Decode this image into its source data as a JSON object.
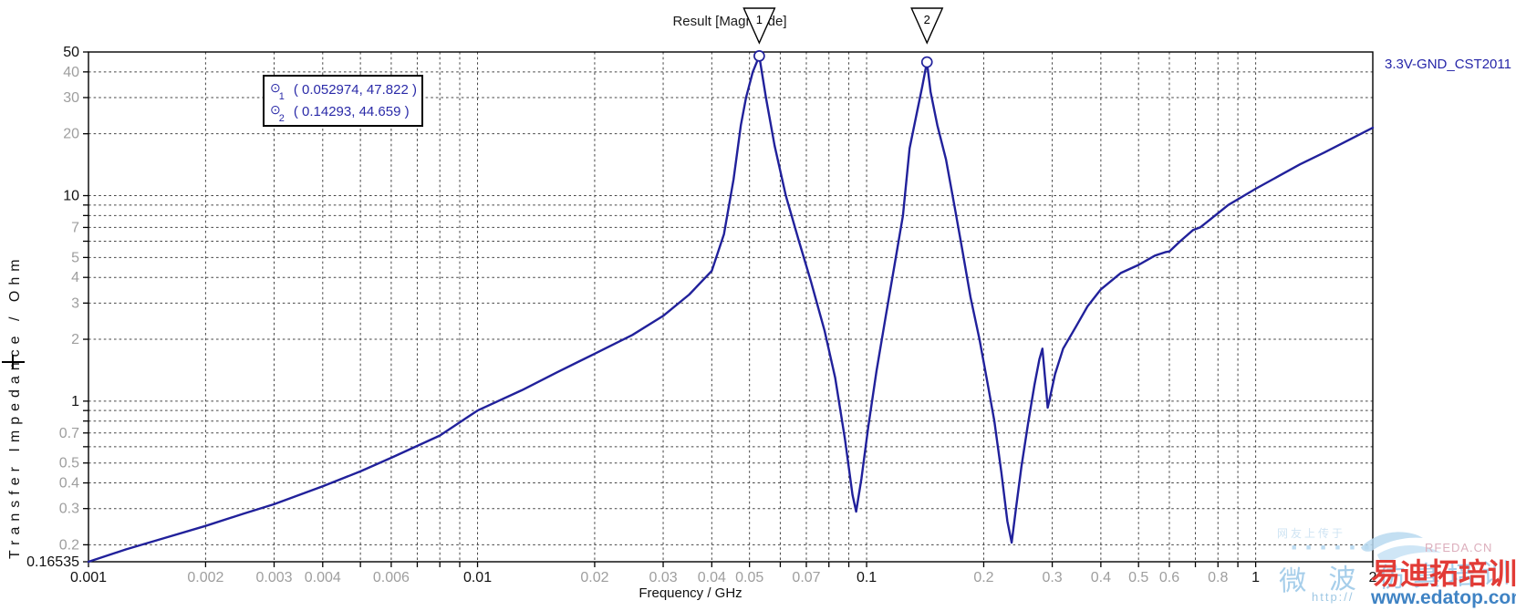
{
  "title": "Result [Magnitude]",
  "legend": {
    "label": "3.3V-GND_CST2011",
    "color": "#2525a8"
  },
  "axis_titles": {
    "x": "Frequency / GHz",
    "y": "Transfer Impedance / Ohm"
  },
  "markers": [
    {
      "id": "1",
      "x": 0.052974,
      "y": 47.822,
      "readout": "( 0.052974, 47.822 )"
    },
    {
      "id": "2",
      "x": 0.14293,
      "y": 44.659,
      "readout": "( 0.14293, 44.659 )"
    }
  ],
  "chart_data": {
    "type": "line",
    "title": "Result [Magnitude]",
    "xlabel": "Frequency / GHz",
    "ylabel": "Transfer Impedance / Ohm",
    "x_scale": "log",
    "y_scale": "log",
    "xlim": [
      0.001,
      2
    ],
    "ylim": [
      0.16535,
      50
    ],
    "grid": true,
    "legend_position": "top-right",
    "x_ticks": [
      {
        "v": 0.001,
        "label": "0.001",
        "major": true
      },
      {
        "v": 0.002,
        "label": "0.002",
        "major": false
      },
      {
        "v": 0.003,
        "label": "0.003",
        "major": false
      },
      {
        "v": 0.004,
        "label": "0.004",
        "major": false
      },
      {
        "v": 0.006,
        "label": "0.006",
        "major": false
      },
      {
        "v": 0.01,
        "label": "0.01",
        "major": true
      },
      {
        "v": 0.02,
        "label": "0.02",
        "major": false
      },
      {
        "v": 0.03,
        "label": "0.03",
        "major": false
      },
      {
        "v": 0.04,
        "label": "0.04",
        "major": false
      },
      {
        "v": 0.05,
        "label": "0.05",
        "major": false
      },
      {
        "v": 0.07,
        "label": "0.07",
        "major": false
      },
      {
        "v": 0.1,
        "label": "0.1",
        "major": true
      },
      {
        "v": 0.2,
        "label": "0.2",
        "major": false
      },
      {
        "v": 0.3,
        "label": "0.3",
        "major": false
      },
      {
        "v": 0.4,
        "label": "0.4",
        "major": false
      },
      {
        "v": 0.5,
        "label": "0.5",
        "major": false
      },
      {
        "v": 0.6,
        "label": "0.6",
        "major": false
      },
      {
        "v": 0.8,
        "label": "0.8",
        "major": false
      },
      {
        "v": 1,
        "label": "1",
        "major": true
      },
      {
        "v": 2,
        "label": "2",
        "major": true
      }
    ],
    "y_ticks": [
      {
        "v": 50,
        "label": "50",
        "major": true
      },
      {
        "v": 40,
        "label": "40",
        "major": false
      },
      {
        "v": 30,
        "label": "30",
        "major": false
      },
      {
        "v": 20,
        "label": "20",
        "major": false
      },
      {
        "v": 10,
        "label": "10",
        "major": true
      },
      {
        "v": 7,
        "label": "7",
        "major": false
      },
      {
        "v": 5,
        "label": "5",
        "major": false
      },
      {
        "v": 4,
        "label": "4",
        "major": false
      },
      {
        "v": 3,
        "label": "3",
        "major": false
      },
      {
        "v": 2,
        "label": "2",
        "major": false
      },
      {
        "v": 1,
        "label": "1",
        "major": true
      },
      {
        "v": 0.7,
        "label": "0.7",
        "major": false
      },
      {
        "v": 0.5,
        "label": "0.5",
        "major": false
      },
      {
        "v": 0.4,
        "label": "0.4",
        "major": false
      },
      {
        "v": 0.3,
        "label": "0.3",
        "major": false
      },
      {
        "v": 0.2,
        "label": "0.2",
        "major": false
      },
      {
        "v": 0.16535,
        "label": "0.16535",
        "major": true
      }
    ],
    "series": [
      {
        "name": "3.3V-GND_CST2011",
        "color": "#21219b",
        "points": [
          [
            0.001,
            0.16535
          ],
          [
            0.00125,
            0.19
          ],
          [
            0.0016,
            0.218
          ],
          [
            0.002,
            0.247
          ],
          [
            0.0025,
            0.283
          ],
          [
            0.003,
            0.315
          ],
          [
            0.004,
            0.385
          ],
          [
            0.005,
            0.455
          ],
          [
            0.006,
            0.53
          ],
          [
            0.008,
            0.68
          ],
          [
            0.01,
            0.9
          ],
          [
            0.013,
            1.13
          ],
          [
            0.016,
            1.38
          ],
          [
            0.02,
            1.7
          ],
          [
            0.025,
            2.1
          ],
          [
            0.03,
            2.6
          ],
          [
            0.035,
            3.3
          ],
          [
            0.04,
            4.3
          ],
          [
            0.043,
            6.5
          ],
          [
            0.0455,
            12
          ],
          [
            0.0475,
            22
          ],
          [
            0.049,
            30
          ],
          [
            0.051,
            40
          ],
          [
            0.052974,
            47.822
          ],
          [
            0.0551,
            30
          ],
          [
            0.058,
            17.5
          ],
          [
            0.062,
            10
          ],
          [
            0.067,
            6
          ],
          [
            0.072,
            3.8
          ],
          [
            0.078,
            2.2
          ],
          [
            0.083,
            1.3
          ],
          [
            0.088,
            0.65
          ],
          [
            0.092,
            0.35
          ],
          [
            0.094,
            0.29
          ],
          [
            0.097,
            0.42
          ],
          [
            0.101,
            0.75
          ],
          [
            0.106,
            1.4
          ],
          [
            0.112,
            2.6
          ],
          [
            0.118,
            4.6
          ],
          [
            0.124,
            8
          ],
          [
            0.129,
            17
          ],
          [
            0.135,
            26
          ],
          [
            0.139,
            34
          ],
          [
            0.14293,
            44.659
          ],
          [
            0.146,
            32
          ],
          [
            0.152,
            22
          ],
          [
            0.16,
            15
          ],
          [
            0.168,
            9
          ],
          [
            0.176,
            5.5
          ],
          [
            0.185,
            3.2
          ],
          [
            0.195,
            2
          ],
          [
            0.205,
            1.2
          ],
          [
            0.213,
            0.8
          ],
          [
            0.222,
            0.45
          ],
          [
            0.23,
            0.26
          ],
          [
            0.236,
            0.205
          ],
          [
            0.242,
            0.3
          ],
          [
            0.25,
            0.48
          ],
          [
            0.26,
            0.78
          ],
          [
            0.27,
            1.2
          ],
          [
            0.278,
            1.6
          ],
          [
            0.283,
            1.8
          ],
          [
            0.288,
            1.25
          ],
          [
            0.292,
            0.93
          ],
          [
            0.297,
            1.07
          ],
          [
            0.305,
            1.35
          ],
          [
            0.32,
            1.8
          ],
          [
            0.345,
            2.3
          ],
          [
            0.37,
            2.9
          ],
          [
            0.4,
            3.5
          ],
          [
            0.45,
            4.2
          ],
          [
            0.5,
            4.6
          ],
          [
            0.55,
            5.1
          ],
          [
            0.585,
            5.3
          ],
          [
            0.6,
            5.35
          ],
          [
            0.64,
            6
          ],
          [
            0.69,
            6.8
          ],
          [
            0.72,
            7
          ],
          [
            0.76,
            7.6
          ],
          [
            0.85,
            9
          ],
          [
            0.95,
            10.2
          ],
          [
            1,
            10.8
          ],
          [
            1.15,
            12.5
          ],
          [
            1.3,
            14.2
          ],
          [
            1.5,
            16.2
          ],
          [
            1.75,
            18.8
          ],
          [
            2,
            21.4
          ]
        ]
      }
    ],
    "annotations": [
      {
        "marker": "1",
        "text": "( 0.052974, 47.822 )"
      },
      {
        "marker": "2",
        "text": "( 0.14293, 44.659 )"
      }
    ]
  },
  "watermarks": {
    "uploader_note": "网友上传于",
    "squares_row": "■ ■ ■ ■ ■ ■",
    "site_logo_text": "RFEDA.CN",
    "script_text": "微 波 仿真培训",
    "url_prefix": "http://",
    "brand_cn": "易迪拓培训",
    "brand_url": "www.edatop.com"
  },
  "colors": {
    "curve": "#21219b",
    "major_label": "#111111",
    "minor_label": "#9e9e9e",
    "grid": "#454545",
    "brand_red": "#e23b36",
    "brand_blue": "#3f83c4"
  }
}
